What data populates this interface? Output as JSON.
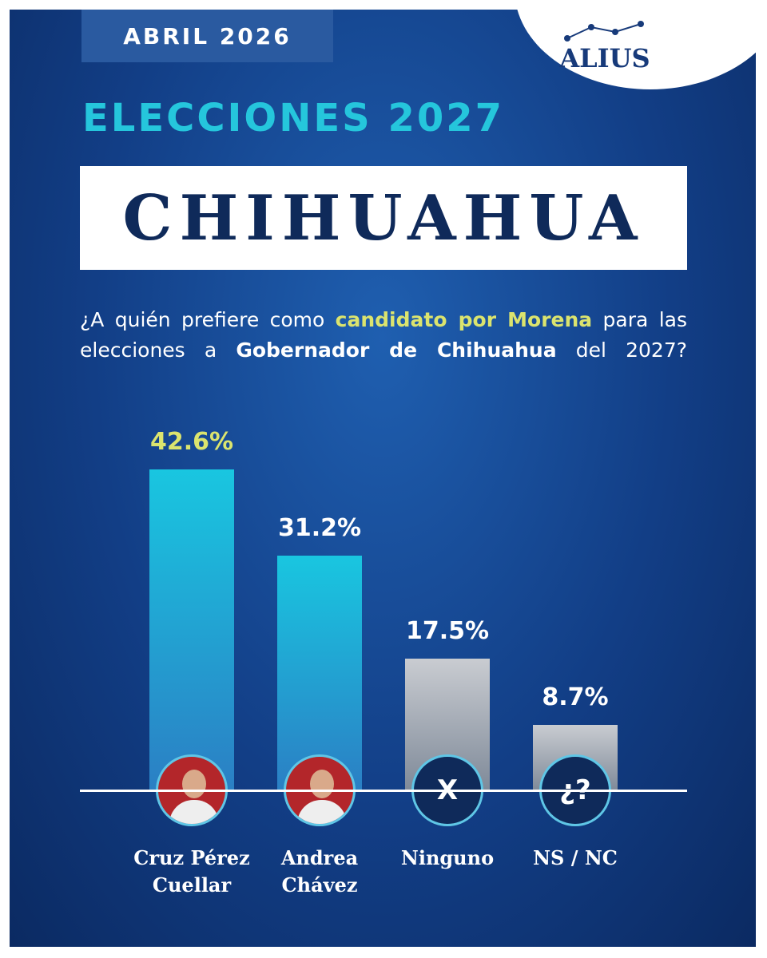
{
  "header": {
    "date": "ABRIL 2026",
    "logo": "ALIUS",
    "title": "ELECCIONES 2027",
    "state": "CHIHUAHUA"
  },
  "question": {
    "parts": [
      {
        "text": "¿A quién prefiere como ",
        "style": "normal"
      },
      {
        "text": "candidato por Morena",
        "style": "highlight"
      },
      {
        "text": " para las elecciones a ",
        "style": "normal"
      },
      {
        "text": "Gobernador de Chihuahua",
        "style": "bold"
      },
      {
        "text": " del 2027?",
        "style": "normal"
      }
    ]
  },
  "chart_data": {
    "type": "bar",
    "categories": [
      "Cruz Pérez Cuellar",
      "Andrea Chávez",
      "Ninguno",
      "NS / NC"
    ],
    "values": [
      42.6,
      31.2,
      17.5,
      8.7
    ],
    "value_labels": [
      "42.6%",
      "31.2%",
      "17.5%",
      "8.7%"
    ],
    "colors": [
      "#19c6e0",
      "#19c6e0",
      "#c9ccd1",
      "#c9ccd1"
    ],
    "label_colors": [
      "#dbe46e",
      "#ffffff",
      "#ffffff",
      "#ffffff"
    ],
    "icons": [
      null,
      null,
      "X",
      "¿?"
    ]
  }
}
